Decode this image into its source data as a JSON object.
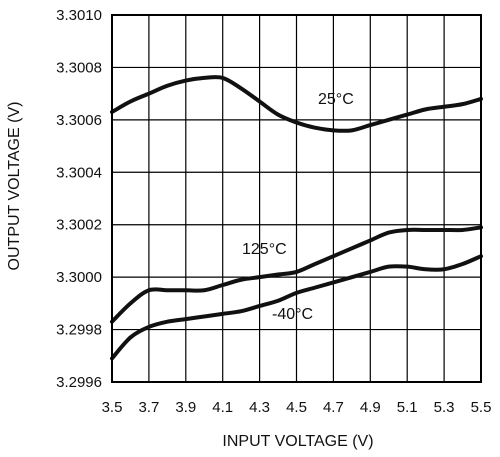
{
  "chart_data": {
    "type": "line",
    "xlabel": "INPUT VOLTAGE (V)",
    "ylabel": "OUTPUT VOLTAGE (V)",
    "xlim": [
      3.5,
      5.5
    ],
    "ylim": [
      3.2996,
      3.301
    ],
    "grid": true,
    "xticks": [
      "3.5",
      "3.7",
      "3.9",
      "4.1",
      "4.3",
      "4.5",
      "4.7",
      "4.9",
      "5.1",
      "5.3",
      "5.5"
    ],
    "yticks": [
      "3.2996",
      "3.2998",
      "3.3000",
      "3.3002",
      "3.3004",
      "3.3006",
      "3.3008",
      "3.3010"
    ],
    "series": [
      {
        "name": "25°C",
        "x": [
          3.5,
          3.6,
          3.7,
          3.8,
          3.9,
          4.0,
          4.1,
          4.2,
          4.3,
          4.4,
          4.5,
          4.6,
          4.7,
          4.8,
          4.9,
          5.0,
          5.1,
          5.2,
          5.3,
          5.4,
          5.5
        ],
        "y": [
          3.30063,
          3.30067,
          3.3007,
          3.30073,
          3.30075,
          3.30076,
          3.30076,
          3.30072,
          3.30067,
          3.30062,
          3.30059,
          3.30057,
          3.30056,
          3.30056,
          3.30058,
          3.3006,
          3.30062,
          3.30064,
          3.30065,
          3.30066,
          3.30068
        ]
      },
      {
        "name": "125°C",
        "x": [
          3.5,
          3.6,
          3.7,
          3.8,
          3.9,
          4.0,
          4.1,
          4.2,
          4.3,
          4.4,
          4.5,
          4.6,
          4.7,
          4.8,
          4.9,
          5.0,
          5.1,
          5.2,
          5.3,
          5.4,
          5.5
        ],
        "y": [
          3.29983,
          3.2999,
          3.29995,
          3.29995,
          3.29995,
          3.29995,
          3.29997,
          3.29999,
          3.3,
          3.30001,
          3.30002,
          3.30005,
          3.30008,
          3.30011,
          3.30014,
          3.30017,
          3.30018,
          3.30018,
          3.30018,
          3.30018,
          3.30019
        ]
      },
      {
        "name": "-40°C",
        "x": [
          3.5,
          3.6,
          3.7,
          3.8,
          3.9,
          4.0,
          4.1,
          4.2,
          4.3,
          4.4,
          4.5,
          4.6,
          4.7,
          4.8,
          4.9,
          5.0,
          5.1,
          5.2,
          5.3,
          5.4,
          5.5
        ],
        "y": [
          3.29969,
          3.29977,
          3.29981,
          3.29983,
          3.29984,
          3.29985,
          3.29986,
          3.29987,
          3.29989,
          3.29991,
          3.29994,
          3.29996,
          3.29998,
          3.3,
          3.30002,
          3.30004,
          3.30004,
          3.30003,
          3.30003,
          3.30005,
          3.30008
        ]
      }
    ]
  }
}
